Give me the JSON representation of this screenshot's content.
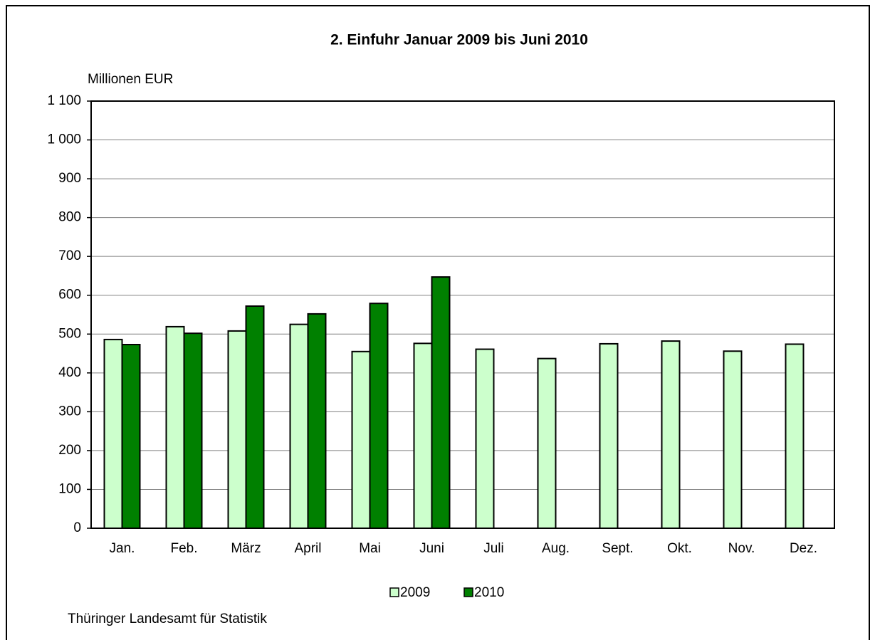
{
  "chart_data": {
    "type": "bar",
    "title": "2. Einfuhr Januar 2009 bis Juni 2010",
    "y_label": "Millionen EUR",
    "source": "Thüringer Landesamt für Statistik",
    "categories": [
      "Jan.",
      "Feb.",
      "März",
      "April",
      "Mai",
      "Juni",
      "Juli",
      "Aug.",
      "Sept.",
      "Okt.",
      "Nov.",
      "Dez."
    ],
    "series": [
      {
        "name": "2009",
        "color": "#ccffcc",
        "values": [
          486,
          519,
          508,
          525,
          455,
          476,
          461,
          437,
          475,
          482,
          456,
          474
        ]
      },
      {
        "name": "2010",
        "color": "#008000",
        "values": [
          473,
          502,
          572,
          552,
          579,
          647,
          null,
          null,
          null,
          null,
          null,
          null
        ]
      }
    ],
    "ylim": [
      0,
      1100
    ],
    "yticks": [
      0,
      100,
      200,
      300,
      400,
      500,
      600,
      700,
      800,
      900,
      {
        "value": 1000,
        "label": "1 000"
      },
      {
        "value": 1100,
        "label": "1 100"
      }
    ],
    "grid": true,
    "legend": "bottom"
  }
}
